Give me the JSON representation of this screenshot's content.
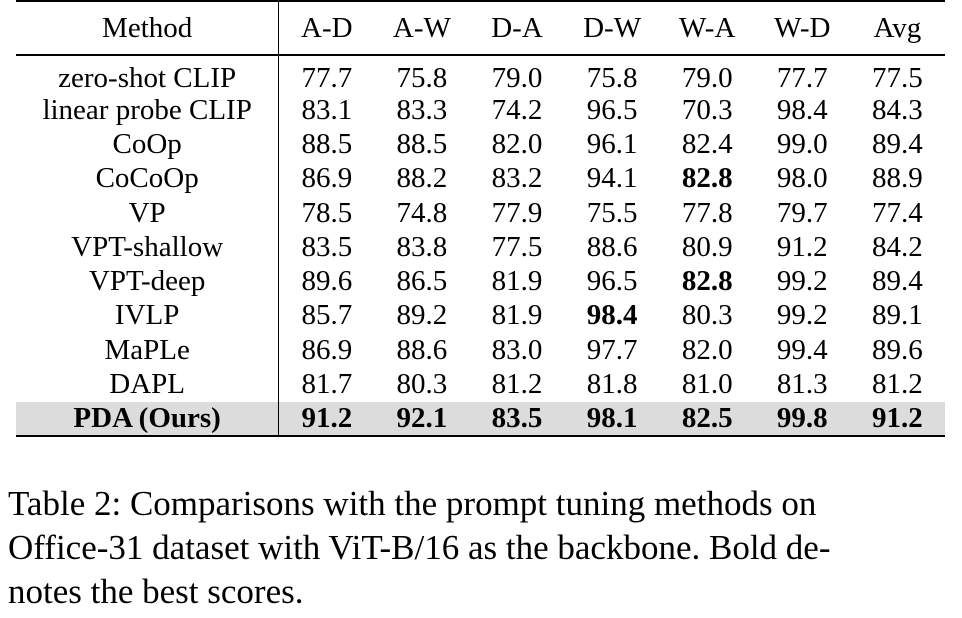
{
  "table": {
    "columns": [
      "Method",
      "A-D",
      "A-W",
      "D-A",
      "D-W",
      "W-A",
      "W-D",
      "Avg"
    ],
    "rows": [
      {
        "method": "zero-shot CLIP",
        "values": [
          "77.7",
          "75.8",
          "79.0",
          "75.8",
          "79.0",
          "77.7",
          "77.5"
        ],
        "bold": []
      },
      {
        "method": "linear probe CLIP",
        "values": [
          "83.1",
          "83.3",
          "74.2",
          "96.5",
          "70.3",
          "98.4",
          "84.3"
        ],
        "bold": []
      },
      {
        "method": "CoOp",
        "values": [
          "88.5",
          "88.5",
          "82.0",
          "96.1",
          "82.4",
          "99.0",
          "89.4"
        ],
        "bold": []
      },
      {
        "method": "CoCoOp",
        "values": [
          "86.9",
          "88.2",
          "83.2",
          "94.1",
          "82.8",
          "98.0",
          "88.9"
        ],
        "bold": [
          4
        ]
      },
      {
        "method": "VP",
        "values": [
          "78.5",
          "74.8",
          "77.9",
          "75.5",
          "77.8",
          "79.7",
          "77.4"
        ],
        "bold": []
      },
      {
        "method": "VPT-shallow",
        "values": [
          "83.5",
          "83.8",
          "77.5",
          "88.6",
          "80.9",
          "91.2",
          "84.2"
        ],
        "bold": []
      },
      {
        "method": "VPT-deep",
        "values": [
          "89.6",
          "86.5",
          "81.9",
          "96.5",
          "82.8",
          "99.2",
          "89.4"
        ],
        "bold": [
          4
        ]
      },
      {
        "method": "IVLP",
        "values": [
          "85.7",
          "89.2",
          "81.9",
          "98.4",
          "80.3",
          "99.2",
          "89.1"
        ],
        "bold": [
          3
        ]
      },
      {
        "method": "MaPLe",
        "values": [
          "86.9",
          "88.6",
          "83.0",
          "97.7",
          "82.0",
          "99.4",
          "89.6"
        ],
        "bold": []
      },
      {
        "method": "DAPL",
        "values": [
          "81.7",
          "80.3",
          "81.2",
          "81.8",
          "81.0",
          "81.3",
          "81.2"
        ],
        "bold": []
      },
      {
        "method": "PDA (Ours)",
        "values": [
          "91.2",
          "92.1",
          "83.5",
          "98.1",
          "82.5",
          "99.8",
          "91.2"
        ],
        "bold": [
          0,
          1,
          2,
          5,
          6
        ],
        "highlight": true
      }
    ]
  },
  "caption": {
    "lines": [
      "Table 2: Comparisons with the prompt tuning methods on",
      "Office-31 dataset with ViT-B/16 as the backbone. Bold de-",
      "notes the best scores."
    ]
  }
}
